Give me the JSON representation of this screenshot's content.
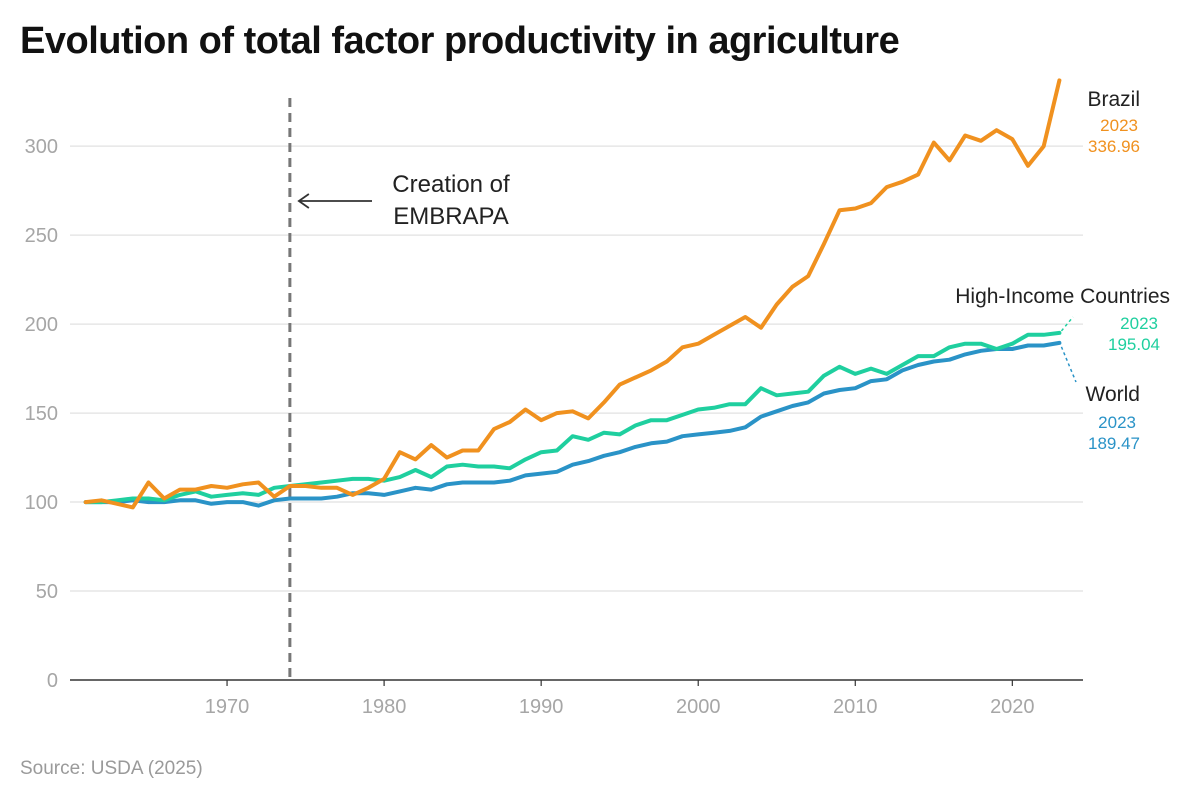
{
  "title": "Evolution of total factor productivity in agriculture",
  "source": "Source: USDA (2025)",
  "colors": {
    "brazil": "#f0911f",
    "high_income": "#1fcf9f",
    "world": "#2a93c7",
    "grid": "#e6e6e6",
    "annotation": "#777777"
  },
  "annotation": {
    "line1": "Creation of",
    "line2": "EMBRAPA",
    "x": 1974
  },
  "chart_data": {
    "type": "line",
    "title": "Evolution of total factor productivity in agriculture",
    "xlabel": "",
    "ylabel": "",
    "xlim": [
      1960,
      2024.5
    ],
    "ylim": [
      0,
      340
    ],
    "grid": true,
    "x_ticks": [
      1970,
      1980,
      1990,
      2000,
      2010,
      2020
    ],
    "y_ticks": [
      0,
      50,
      100,
      150,
      200,
      250,
      300
    ],
    "x": [
      1961,
      1962,
      1963,
      1964,
      1965,
      1966,
      1967,
      1968,
      1969,
      1970,
      1971,
      1972,
      1973,
      1974,
      1975,
      1976,
      1977,
      1978,
      1979,
      1980,
      1981,
      1982,
      1983,
      1984,
      1985,
      1986,
      1987,
      1988,
      1989,
      1990,
      1991,
      1992,
      1993,
      1994,
      1995,
      1996,
      1997,
      1998,
      1999,
      2000,
      2001,
      2002,
      2003,
      2004,
      2005,
      2006,
      2007,
      2008,
      2009,
      2010,
      2011,
      2012,
      2013,
      2014,
      2015,
      2016,
      2017,
      2018,
      2019,
      2020,
      2021,
      2022,
      2023
    ],
    "series": [
      {
        "name": "Brazil",
        "label_year": "2023",
        "label_value": "336.96",
        "values": [
          100,
          101,
          99,
          97,
          111,
          102,
          107,
          107,
          109,
          108,
          110,
          111,
          103,
          109,
          109,
          108,
          108,
          104,
          108,
          113,
          128,
          124,
          132,
          125,
          129,
          129,
          141,
          145,
          152,
          146,
          150,
          151,
          147,
          156,
          166,
          170,
          174,
          179,
          187,
          189,
          194,
          199,
          204,
          198,
          211,
          221,
          227,
          245,
          264,
          265,
          268,
          277,
          280,
          284,
          302,
          292,
          306,
          303,
          309,
          304,
          289,
          300,
          336.96
        ]
      },
      {
        "name": "High-Income Countries",
        "label_year": "2023",
        "label_value": "195.04",
        "values": [
          100,
          100,
          101,
          102,
          102,
          101,
          104,
          106,
          103,
          104,
          105,
          104,
          108,
          109,
          110,
          111,
          112,
          113,
          113,
          112,
          114,
          118,
          114,
          120,
          121,
          120,
          120,
          119,
          124,
          128,
          129,
          137,
          135,
          139,
          138,
          143,
          146,
          146,
          149,
          152,
          153,
          155,
          155,
          164,
          160,
          161,
          162,
          171,
          176,
          172,
          175,
          172,
          177,
          182,
          182,
          187,
          189,
          189,
          186,
          189,
          194,
          194,
          195.04
        ]
      },
      {
        "name": "World",
        "label_year": "2023",
        "label_value": "189.47",
        "values": [
          100,
          100,
          100,
          101,
          100,
          100,
          101,
          101,
          99,
          100,
          100,
          98,
          101,
          102,
          102,
          102,
          103,
          105,
          105,
          104,
          106,
          108,
          107,
          110,
          111,
          111,
          111,
          112,
          115,
          116,
          117,
          121,
          123,
          126,
          128,
          131,
          133,
          134,
          137,
          138,
          139,
          140,
          142,
          148,
          151,
          154,
          156,
          161,
          163,
          164,
          168,
          169,
          174,
          177,
          179,
          180,
          183,
          185,
          186,
          186,
          188,
          188,
          189.47
        ]
      }
    ]
  }
}
